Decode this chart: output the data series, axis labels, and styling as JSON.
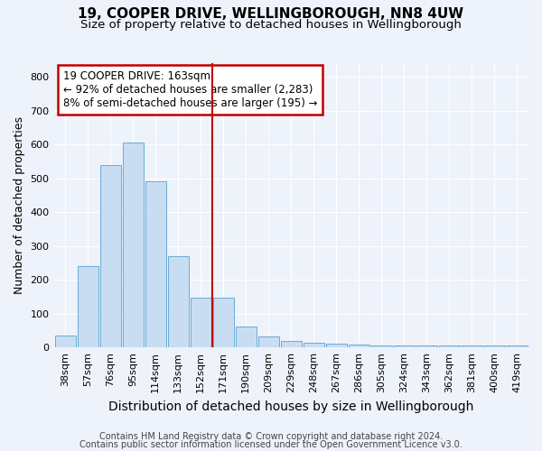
{
  "title": "19, COOPER DRIVE, WELLINGBOROUGH, NN8 4UW",
  "subtitle": "Size of property relative to detached houses in Wellingborough",
  "xlabel": "Distribution of detached houses by size in Wellingborough",
  "ylabel": "Number of detached properties",
  "footnote1": "Contains HM Land Registry data © Crown copyright and database right 2024.",
  "footnote2": "Contains public sector information licensed under the Open Government Licence v3.0.",
  "categories": [
    "38sqm",
    "57sqm",
    "76sqm",
    "95sqm",
    "114sqm",
    "133sqm",
    "152sqm",
    "171sqm",
    "190sqm",
    "209sqm",
    "229sqm",
    "248sqm",
    "267sqm",
    "286sqm",
    "305sqm",
    "324sqm",
    "343sqm",
    "362sqm",
    "381sqm",
    "400sqm",
    "419sqm"
  ],
  "values": [
    35,
    240,
    540,
    605,
    490,
    270,
    148,
    148,
    63,
    32,
    20,
    15,
    12,
    8,
    7,
    6,
    5,
    5,
    5,
    5,
    7
  ],
  "bar_color": "#c9ddf2",
  "bar_edge_color": "#6aabd4",
  "vline_x_index": 6.5,
  "vline_color": "#c00000",
  "ylim": [
    0,
    840
  ],
  "yticks": [
    0,
    100,
    200,
    300,
    400,
    500,
    600,
    700,
    800
  ],
  "annotation_title": "19 COOPER DRIVE: 163sqm",
  "annotation_line1": "← 92% of detached houses are smaller (2,283)",
  "annotation_line2": "8% of semi-detached houses are larger (195) →",
  "annotation_box_facecolor": "#ffffff",
  "annotation_box_edgecolor": "#c00000",
  "bg_color": "#eef2fa",
  "grid_color": "#ffffff",
  "title_fontsize": 11,
  "subtitle_fontsize": 9.5,
  "ylabel_fontsize": 9,
  "xlabel_fontsize": 10,
  "tick_fontsize": 8,
  "annotation_fontsize": 8.5,
  "footnote_fontsize": 7
}
